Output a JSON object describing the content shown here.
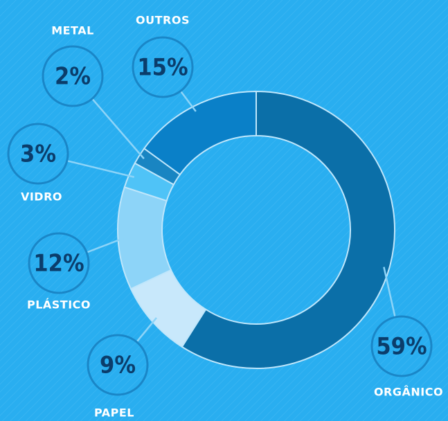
{
  "chart_data": {
    "type": "donut",
    "categories": [
      "ORGÂNICO",
      "PAPEL",
      "PLÁSTICO",
      "VIDRO",
      "METAL",
      "OUTROS"
    ],
    "values": [
      59,
      9,
      12,
      3,
      2,
      15
    ],
    "value_labels": [
      "59%",
      "9%",
      "12%",
      "3%",
      "2%",
      "15%"
    ],
    "colors": [
      "#0b6fa8",
      "#c8e8fb",
      "#8dd4f8",
      "#4fc3f7",
      "#1985c2",
      "#0a80c8"
    ]
  }
}
